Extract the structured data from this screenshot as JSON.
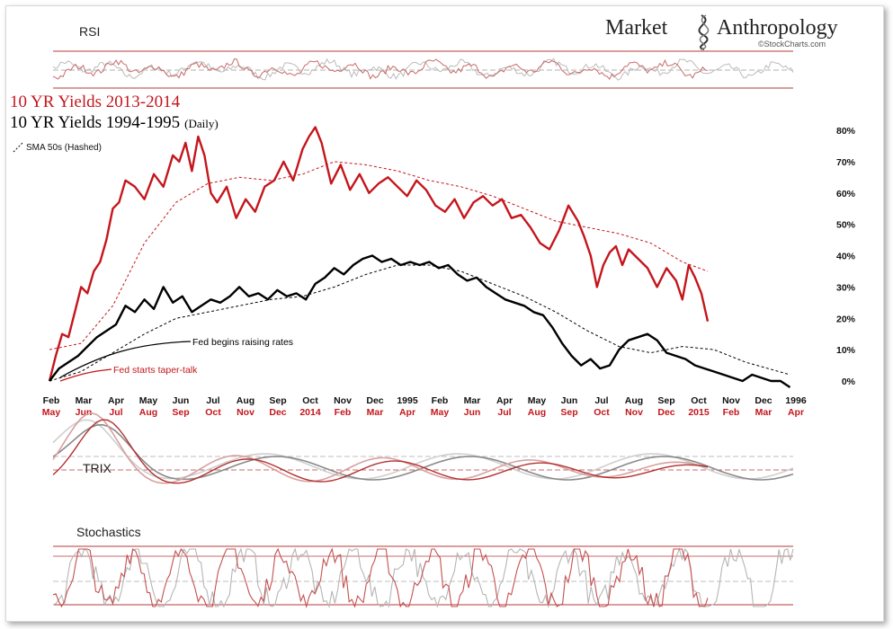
{
  "brand": {
    "name_left": "Market",
    "name_right": "Anthropology",
    "source": "©StockCharts.com"
  },
  "panels": {
    "rsi_label": "RSI",
    "trix_label": "TRIX",
    "stoch_label": "Stochastics"
  },
  "legend": {
    "red_title": "10 YR Yields 2013-2014",
    "black_title": "10 YR Yields 1994-1995",
    "black_suffix": "(Daily)",
    "sma_note": "SMA 50s (Hashed)"
  },
  "annotations": {
    "fed_raise": "Fed begins raising rates",
    "fed_taper": "Fed starts taper-talk"
  },
  "colors": {
    "red": "#c4161c",
    "black": "#000000",
    "grey": "#9a9a9a",
    "pink": "#d9a0a0"
  },
  "chart_data": {
    "type": "line",
    "y_axis": {
      "ticks": [
        "0%",
        "10%",
        "20%",
        "30%",
        "40%",
        "50%",
        "60%",
        "70%",
        "80%"
      ],
      "ylim": [
        -3,
        84
      ],
      "position": "right"
    },
    "x_axis_top_labels": [
      "Feb",
      "Mar",
      "Apr",
      "May",
      "Jun",
      "Jul",
      "Aug",
      "Sep",
      "Oct",
      "Nov",
      "Dec",
      "1995",
      "Feb",
      "Mar",
      "Apr",
      "May",
      "Jun",
      "Jul",
      "Aug",
      "Sep",
      "Oct",
      "Nov",
      "Dec",
      "1996"
    ],
    "x_axis_bottom_labels": [
      "May",
      "Jun",
      "Jul",
      "Aug",
      "Sep",
      "Oct",
      "Nov",
      "Dec",
      "2014",
      "Feb",
      "Mar",
      "Apr",
      "May",
      "Jun",
      "Jul",
      "Aug",
      "Sep",
      "Oct",
      "Nov",
      "Dec",
      "2015",
      "Feb",
      "Mar",
      "Apr"
    ],
    "xlim": [
      0,
      23.5
    ],
    "series": [
      {
        "name": "10 YR Yields 2013-2014",
        "color": "#c4161c",
        "x": [
          0,
          0.2,
          0.4,
          0.6,
          0.8,
          1.0,
          1.2,
          1.4,
          1.6,
          1.8,
          2.0,
          2.2,
          2.4,
          2.7,
          3.0,
          3.3,
          3.6,
          3.9,
          4.1,
          4.3,
          4.5,
          4.7,
          4.9,
          5.1,
          5.3,
          5.6,
          5.9,
          6.2,
          6.5,
          6.8,
          7.1,
          7.4,
          7.7,
          8.0,
          8.2,
          8.4,
          8.6,
          8.9,
          9.2,
          9.5,
          9.8,
          10.1,
          10.4,
          10.7,
          11.0,
          11.3,
          11.6,
          11.9,
          12.2,
          12.5,
          12.8,
          13.1,
          13.4,
          13.7,
          14.0,
          14.3,
          14.6,
          14.9,
          15.2,
          15.5,
          15.8,
          16.1,
          16.4,
          16.7,
          16.9,
          17.1,
          17.3,
          17.5,
          17.7,
          17.9,
          18.1,
          18.3,
          18.6,
          18.9,
          19.2,
          19.5,
          19.8,
          20.0,
          20.2,
          20.4,
          20.6,
          20.8
        ],
        "values": [
          0,
          8,
          15,
          14,
          22,
          30,
          28,
          35,
          38,
          45,
          55,
          57,
          64,
          62,
          58,
          66,
          62,
          72,
          70,
          76,
          67,
          78,
          72,
          60,
          57,
          62,
          52,
          58,
          54,
          62,
          64,
          70,
          64,
          74,
          78,
          81,
          76,
          63,
          69,
          61,
          66,
          60,
          63,
          65,
          62,
          59,
          64,
          61,
          56,
          54,
          58,
          52,
          57,
          59,
          56,
          58,
          52,
          53,
          49,
          44,
          42,
          48,
          56,
          51,
          46,
          40,
          30,
          37,
          41,
          43,
          37,
          42,
          39,
          36,
          30,
          36,
          32,
          26,
          37,
          33,
          28,
          19
        ]
      },
      {
        "name": "10 YR Yields 1994-1995",
        "color": "#000000",
        "x": [
          0,
          0.3,
          0.6,
          0.9,
          1.2,
          1.5,
          1.8,
          2.1,
          2.4,
          2.7,
          3.0,
          3.3,
          3.6,
          3.9,
          4.2,
          4.5,
          4.8,
          5.1,
          5.4,
          5.7,
          6.0,
          6.3,
          6.6,
          6.9,
          7.2,
          7.5,
          7.8,
          8.1,
          8.4,
          8.7,
          9.0,
          9.3,
          9.6,
          9.9,
          10.2,
          10.5,
          10.8,
          11.1,
          11.4,
          11.7,
          12.0,
          12.3,
          12.6,
          12.9,
          13.2,
          13.5,
          13.8,
          14.1,
          14.4,
          14.7,
          15.0,
          15.3,
          15.6,
          15.9,
          16.2,
          16.5,
          16.8,
          17.1,
          17.4,
          17.7,
          18.0,
          18.3,
          18.6,
          18.9,
          19.2,
          19.5,
          19.8,
          20.1,
          20.4,
          20.7,
          21.0,
          21.3,
          21.6,
          21.9,
          22.2,
          22.5,
          22.8,
          23.1,
          23.4
        ],
        "values": [
          0,
          4,
          6,
          8,
          11,
          14,
          16,
          18,
          24,
          22,
          26,
          23,
          30,
          25,
          27,
          22,
          24,
          26,
          25,
          27,
          30,
          27,
          28,
          26,
          29,
          27,
          28,
          26,
          31,
          33,
          36,
          34,
          37,
          39,
          40,
          38,
          39,
          37,
          38,
          37,
          38,
          36,
          37,
          34,
          32,
          33,
          30,
          28,
          26,
          25,
          24,
          22,
          21,
          17,
          12,
          8,
          5,
          7,
          4,
          5,
          10,
          13,
          14,
          15,
          13,
          9,
          8,
          7,
          5,
          4,
          3,
          2,
          1,
          0,
          2,
          1,
          0,
          0,
          -2
        ]
      },
      {
        "name": "SMA 50 (2013-2014)",
        "color": "#c4161c",
        "dashed": true,
        "x": [
          0,
          1,
          2,
          3,
          4,
          5,
          6,
          7,
          8,
          9,
          10,
          11,
          12,
          13,
          14,
          15,
          16,
          17,
          18,
          19,
          20,
          20.8
        ],
        "values": [
          10,
          12,
          24,
          44,
          57,
          63,
          65,
          64,
          66,
          70,
          69,
          67,
          64,
          62,
          59,
          55,
          51,
          49,
          47,
          44,
          38,
          35
        ]
      },
      {
        "name": "SMA 50 (1994-1995)",
        "color": "#000000",
        "dashed": true,
        "x": [
          0,
          1,
          2,
          3,
          4,
          5,
          6,
          7,
          8,
          9,
          10,
          11,
          12,
          13,
          14,
          15,
          16,
          17,
          18,
          19,
          20,
          21,
          22,
          23.4
        ],
        "values": [
          0,
          3,
          9,
          15,
          20,
          22,
          24,
          26,
          27,
          30,
          34,
          37,
          37,
          35,
          31,
          27,
          22,
          16,
          11,
          9,
          11,
          10,
          6,
          2
        ]
      }
    ]
  }
}
